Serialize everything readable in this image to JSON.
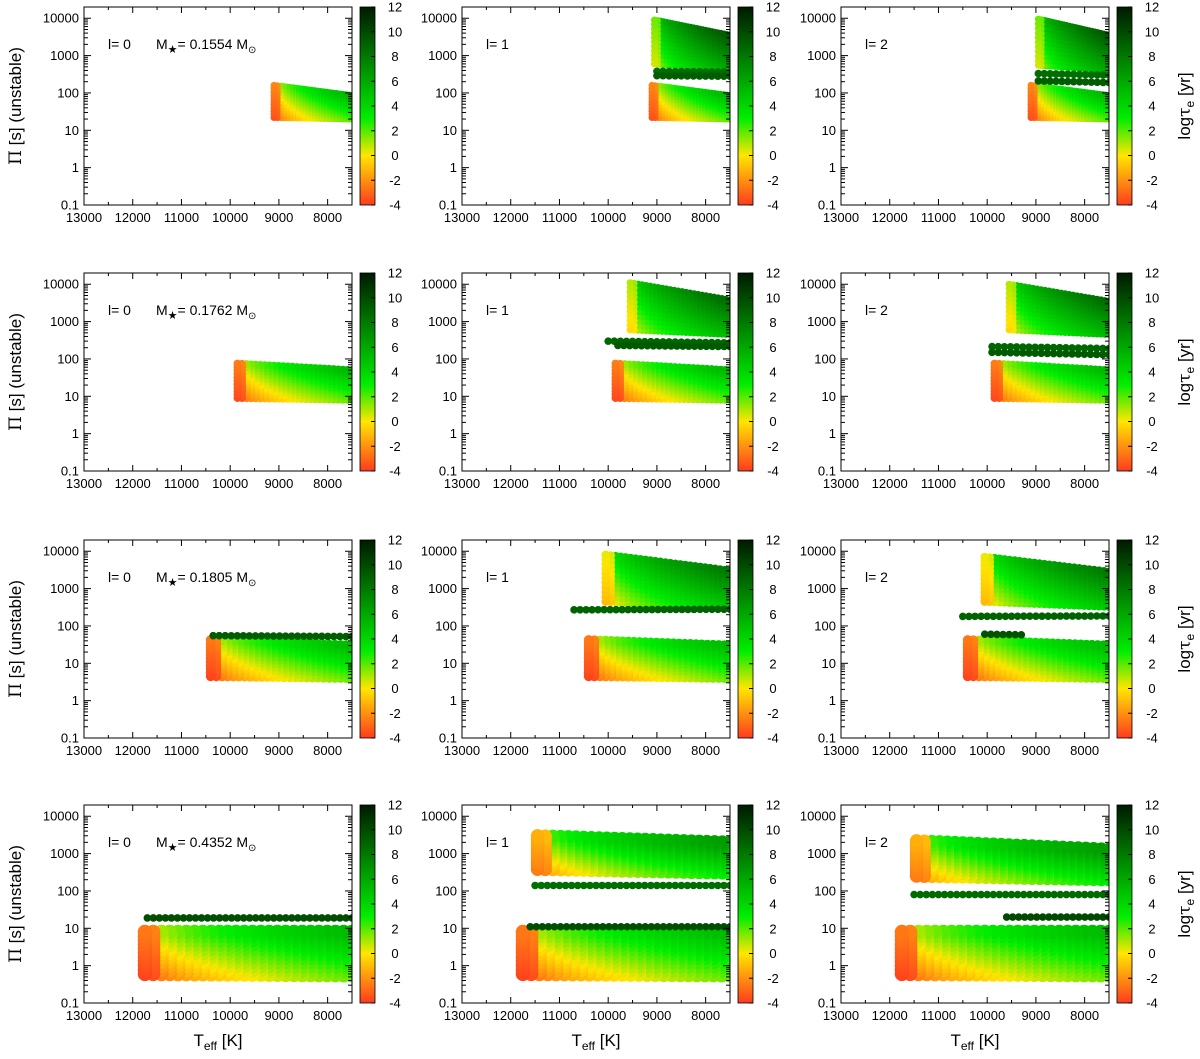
{
  "chart_data": {
    "type": "scatter",
    "title": "",
    "layout": {
      "rows": 4,
      "cols": 3
    },
    "xlabel": "T_eff [K]",
    "xlabel_main": "T",
    "xlabel_sub": "eff",
    "xlabel_unit": " [K]",
    "ylabel_prefix": "Π",
    "ylabel_rest": " [s] (unstable)",
    "colorbar_label": "logτ_e [yr]",
    "colorbar_label_prefix": "log",
    "colorbar_label_tau": "τ",
    "colorbar_label_sub": "e",
    "colorbar_label_unit": " [yr]",
    "x_axis": {
      "range": [
        13000,
        7500
      ],
      "reversed": true,
      "ticks": [
        "13000",
        "12000",
        "11000",
        "10000",
        "9000",
        "8000"
      ],
      "tick_values": [
        13000,
        12000,
        11000,
        10000,
        9000,
        8000
      ]
    },
    "y_axis": {
      "scale": "log",
      "range": [
        0.1,
        20000
      ],
      "ticks": [
        "0.1",
        "1",
        "10",
        "100",
        "1000",
        "10000"
      ],
      "tick_values": [
        0.1,
        1,
        10,
        100,
        1000,
        10000
      ]
    },
    "colorbar": {
      "range": [
        -4,
        12
      ],
      "ticks": [
        "-4",
        "-2",
        "0",
        "2",
        "4",
        "6",
        "8",
        "10",
        "12"
      ],
      "tick_values": [
        -4,
        -2,
        0,
        2,
        4,
        6,
        8,
        10,
        12
      ],
      "colors": [
        "#ff3b1f",
        "#ffe600",
        "#00ee00",
        "#007a00",
        "#001a00"
      ]
    },
    "mass_prefix": "M",
    "mass_star": "★",
    "mass_unit": " M",
    "mass_sun": "⊙",
    "rows": [
      {
        "mass": "= 0.1554",
        "panels": [
          {
            "l_label": "l= 0",
            "bands": [
              {
                "t_hot": 9100,
                "t_cool": 7500,
                "low_hot": 22,
                "low_cool": 20,
                "high_hot": 160,
                "high_cool": 85,
                "minlog": -3.5
              }
            ],
            "lines": []
          },
          {
            "l_label": "l= 1",
            "bands": [
              {
                "t_hot": 9100,
                "t_cool": 7500,
                "low_hot": 22,
                "low_cool": 20,
                "high_hot": 160,
                "high_cool": 85,
                "minlog": -3.5
              },
              {
                "t_hot": 9050,
                "t_cool": 7500,
                "low_hot": 600,
                "low_cool": 450,
                "high_hot": 9000,
                "high_cool": 3500,
                "minlog": 0.5
              }
            ],
            "lines": [
              {
                "t_hot": 9000,
                "t_cool": 7500,
                "p_hot": 380,
                "p_cool": 360,
                "logt": 8.5
              },
              {
                "t_hot": 9000,
                "t_cool": 7500,
                "p_hot": 290,
                "p_cool": 280,
                "logt": 9.2
              }
            ]
          },
          {
            "l_label": "l= 2",
            "bands": [
              {
                "t_hot": 9100,
                "t_cool": 7500,
                "low_hot": 22,
                "low_cool": 20,
                "high_hot": 160,
                "high_cool": 85,
                "minlog": -3.5
              },
              {
                "t_hot": 8950,
                "t_cool": 7500,
                "low_hot": 550,
                "low_cool": 420,
                "high_hot": 9500,
                "high_cool": 3500,
                "minlog": 0.5
              }
            ],
            "lines": [
              {
                "t_hot": 8950,
                "t_cool": 7500,
                "p_hot": 330,
                "p_cool": 300,
                "logt": 8.5
              },
              {
                "t_hot": 8950,
                "t_cool": 7500,
                "p_hot": 210,
                "p_cool": 190,
                "logt": 9.2
              }
            ]
          }
        ]
      },
      {
        "mass": "= 0.1762",
        "panels": [
          {
            "l_label": "l= 0",
            "bands": [
              {
                "t_hot": 9850,
                "t_cool": 7500,
                "low_hot": 9,
                "low_cool": 8,
                "high_hot": 75,
                "high_cool": 50,
                "minlog": -3.7
              }
            ],
            "lines": []
          },
          {
            "l_label": "l= 1",
            "bands": [
              {
                "t_hot": 9850,
                "t_cool": 7500,
                "low_hot": 9,
                "low_cool": 8,
                "high_hot": 75,
                "high_cool": 50,
                "minlog": -3.7
              },
              {
                "t_hot": 9550,
                "t_cool": 7500,
                "low_hot": 600,
                "low_cool": 450,
                "high_hot": 11000,
                "high_cool": 3800,
                "minlog": -0.3
              }
            ],
            "lines": [
              {
                "t_hot": 10000,
                "t_cool": 7500,
                "p_hot": 300,
                "p_cool": 270,
                "logt": 8.8
              },
              {
                "t_hot": 9800,
                "t_cool": 7500,
                "p_hot": 230,
                "p_cool": 215,
                "logt": 9.3
              }
            ]
          },
          {
            "l_label": "l= 2",
            "bands": [
              {
                "t_hot": 9850,
                "t_cool": 7500,
                "low_hot": 9,
                "low_cool": 8,
                "high_hot": 75,
                "high_cool": 50,
                "minlog": -3.7
              },
              {
                "t_hot": 9550,
                "t_cool": 7500,
                "low_hot": 600,
                "low_cool": 450,
                "high_hot": 10000,
                "high_cool": 3500,
                "minlog": -0.3
              }
            ],
            "lines": [
              {
                "t_hot": 9900,
                "t_cool": 7500,
                "p_hot": 215,
                "p_cool": 190,
                "logt": 8.8
              },
              {
                "t_hot": 9900,
                "t_cool": 7500,
                "p_hot": 150,
                "p_cool": 130,
                "logt": 9.3
              }
            ]
          }
        ]
      },
      {
        "mass": "= 0.1805",
        "panels": [
          {
            "l_label": "l= 0",
            "bands": [
              {
                "t_hot": 10400,
                "t_cool": 7500,
                "low_hot": 4.5,
                "low_cool": 4,
                "high_hot": 42,
                "high_cool": 30,
                "minlog": -3.8
              }
            ],
            "lines": [
              {
                "t_hot": 10350,
                "t_cool": 7500,
                "p_hot": 55,
                "p_cool": 52,
                "logt": 9.2
              }
            ]
          },
          {
            "l_label": "l= 1",
            "bands": [
              {
                "t_hot": 10400,
                "t_cool": 7500,
                "low_hot": 4.5,
                "low_cool": 4,
                "high_hot": 42,
                "high_cool": 30,
                "minlog": -3.8
              },
              {
                "t_hot": 10050,
                "t_cool": 7500,
                "low_hot": 450,
                "low_cool": 330,
                "high_hot": 8000,
                "high_cool": 3000,
                "minlog": -1.0
              }
            ],
            "lines": [
              {
                "t_hot": 10700,
                "t_cool": 7500,
                "p_hot": 270,
                "p_cool": 280,
                "logt": 9.0
              }
            ]
          },
          {
            "l_label": "l= 2",
            "bands": [
              {
                "t_hot": 10400,
                "t_cool": 7500,
                "low_hot": 4.5,
                "low_cool": 4,
                "high_hot": 42,
                "high_cool": 30,
                "minlog": -3.8
              },
              {
                "t_hot": 10050,
                "t_cool": 7500,
                "low_hot": 450,
                "low_cool": 330,
                "high_hot": 7000,
                "high_cool": 2800,
                "minlog": -1.0
              }
            ],
            "lines": [
              {
                "t_hot": 10500,
                "t_cool": 7500,
                "p_hot": 180,
                "p_cool": 185,
                "logt": 9.0
              },
              {
                "t_hot": 10050,
                "t_cool": 9300,
                "p_hot": 60,
                "p_cool": 58,
                "logt": 9.6
              }
            ]
          }
        ]
      },
      {
        "mass": "= 0.4352",
        "panels": [
          {
            "l_label": "l= 0",
            "bands": [
              {
                "t_hot": 11750,
                "t_cool": 7500,
                "low_hot": 0.6,
                "low_cool": 0.55,
                "high_hot": 8,
                "high_cool": 8,
                "minlog": -3.8
              }
            ],
            "lines": [
              {
                "t_hot": 11700,
                "t_cool": 7500,
                "p_hot": 19,
                "p_cool": 19,
                "logt": 9.8
              }
            ]
          },
          {
            "l_label": "l= 1",
            "bands": [
              {
                "t_hot": 11750,
                "t_cool": 7500,
                "low_hot": 0.6,
                "low_cool": 0.55,
                "high_hot": 8,
                "high_cool": 8,
                "minlog": -3.8
              },
              {
                "t_hot": 11450,
                "t_cool": 7500,
                "low_hot": 380,
                "low_cool": 300,
                "high_hot": 3000,
                "high_cool": 2000,
                "minlog": -2.5
              }
            ],
            "lines": [
              {
                "t_hot": 11600,
                "t_cool": 7500,
                "p_hot": 11,
                "p_cool": 11,
                "logt": 9.8
              },
              {
                "t_hot": 11500,
                "t_cool": 7500,
                "p_hot": 140,
                "p_cool": 140,
                "logt": 8.5
              }
            ]
          },
          {
            "l_label": "l= 2",
            "bands": [
              {
                "t_hot": 11750,
                "t_cool": 7500,
                "low_hot": 0.6,
                "low_cool": 0.55,
                "high_hot": 8,
                "high_cool": 8,
                "minlog": -3.8
              },
              {
                "t_hot": 11450,
                "t_cool": 7500,
                "low_hot": 250,
                "low_cool": 200,
                "high_hot": 2200,
                "high_cool": 1300,
                "minlog": -2.5
              }
            ],
            "lines": [
              {
                "t_hot": 11500,
                "t_cool": 7500,
                "p_hot": 80,
                "p_cool": 80,
                "logt": 8.6
              },
              {
                "t_hot": 9600,
                "t_cool": 7500,
                "p_hot": 20,
                "p_cool": 20,
                "logt": 10.0
              }
            ]
          }
        ]
      }
    ]
  }
}
